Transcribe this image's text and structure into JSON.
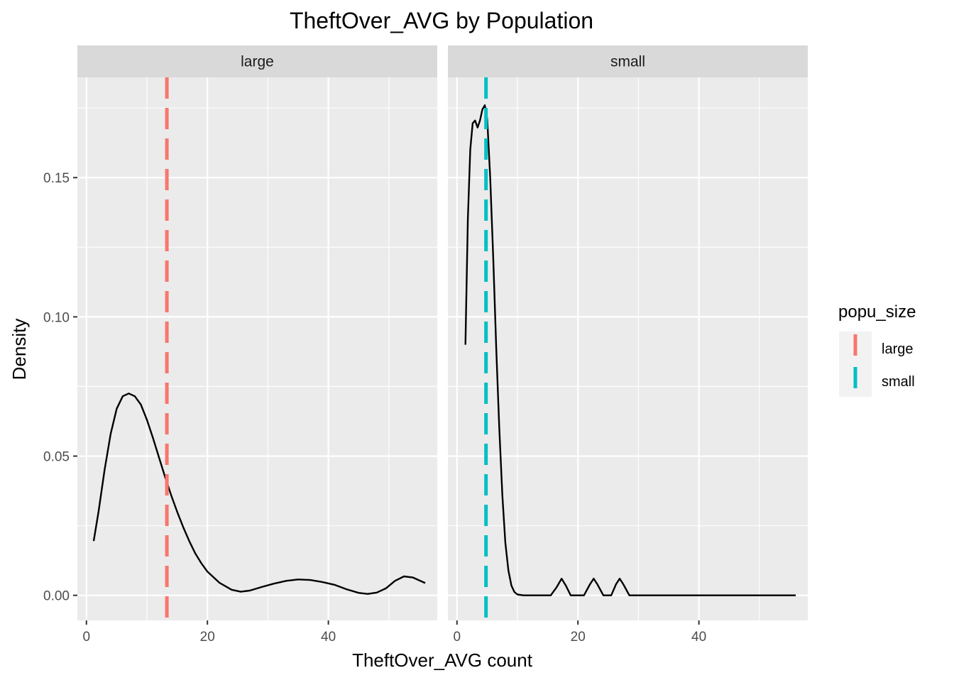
{
  "chart_data": {
    "type": "density",
    "title": "TheftOver_AVG by Population",
    "xlabel": "TheftOver_AVG count",
    "ylabel": "Density",
    "xlim": [
      -1.5,
      58
    ],
    "ylim": [
      -0.009,
      0.186
    ],
    "x_ticks": [
      0,
      20,
      40
    ],
    "y_ticks": [
      0.0,
      0.05,
      0.1,
      0.15
    ],
    "y_tick_labels": [
      "0.00",
      "0.05",
      "0.10",
      "0.15"
    ],
    "grid": true,
    "legend": {
      "title": "popu_size",
      "position": "right",
      "entries": [
        {
          "label": "large",
          "color": "#F8766D"
        },
        {
          "label": "small",
          "color": "#00BFC4"
        }
      ]
    },
    "panels": [
      {
        "strip": "large",
        "mean_line": {
          "x": 13.3,
          "color": "#F8766D",
          "dash": "dashed"
        },
        "curve": [
          [
            1.2,
            0.0195
          ],
          [
            2,
            0.03
          ],
          [
            3,
            0.045
          ],
          [
            4,
            0.058
          ],
          [
            5,
            0.067
          ],
          [
            6,
            0.0715
          ],
          [
            7,
            0.0725
          ],
          [
            8,
            0.0715
          ],
          [
            9,
            0.0685
          ],
          [
            10,
            0.063
          ],
          [
            11,
            0.0565
          ],
          [
            12,
            0.0495
          ],
          [
            13,
            0.0425
          ],
          [
            14,
            0.036
          ],
          [
            15,
            0.03
          ],
          [
            16,
            0.0245
          ],
          [
            17,
            0.0195
          ],
          [
            18,
            0.015
          ],
          [
            19,
            0.0115
          ],
          [
            20,
            0.0085
          ],
          [
            22,
            0.0045
          ],
          [
            24,
            0.002
          ],
          [
            25.5,
            0.0013
          ],
          [
            27,
            0.0017
          ],
          [
            29,
            0.003
          ],
          [
            31,
            0.0042
          ],
          [
            33,
            0.0052
          ],
          [
            35,
            0.0057
          ],
          [
            37,
            0.0055
          ],
          [
            39,
            0.0048
          ],
          [
            41,
            0.0038
          ],
          [
            43,
            0.0022
          ],
          [
            45,
            0.0009
          ],
          [
            46.5,
            0.0005
          ],
          [
            48,
            0.001
          ],
          [
            49.5,
            0.0025
          ],
          [
            51,
            0.0052
          ],
          [
            52.5,
            0.0068
          ],
          [
            54,
            0.0064
          ],
          [
            55,
            0.0054
          ],
          [
            56,
            0.0044
          ]
        ]
      },
      {
        "strip": "small",
        "mean_line": {
          "x": 4.8,
          "color": "#00BFC4",
          "dash": "dashed"
        },
        "curve": [
          [
            1.4,
            0.09
          ],
          [
            1.8,
            0.135
          ],
          [
            2.2,
            0.16
          ],
          [
            2.6,
            0.1695
          ],
          [
            3.0,
            0.1705
          ],
          [
            3.4,
            0.168
          ],
          [
            3.8,
            0.1705
          ],
          [
            4.2,
            0.1745
          ],
          [
            4.6,
            0.176
          ],
          [
            5.0,
            0.171
          ],
          [
            5.5,
            0.15
          ],
          [
            6.0,
            0.121
          ],
          [
            6.5,
            0.088
          ],
          [
            7.0,
            0.06
          ],
          [
            7.5,
            0.036
          ],
          [
            8.0,
            0.019
          ],
          [
            8.5,
            0.009
          ],
          [
            9.0,
            0.0035
          ],
          [
            9.5,
            0.0012
          ],
          [
            10.0,
            0.0003
          ],
          [
            11.0,
            0.0
          ],
          [
            15.5,
            0.0
          ],
          [
            16.5,
            0.003
          ],
          [
            17.3,
            0.006
          ],
          [
            18.0,
            0.0035
          ],
          [
            18.8,
            0.0
          ],
          [
            21.0,
            0.0
          ],
          [
            22.0,
            0.004
          ],
          [
            22.6,
            0.006
          ],
          [
            23.2,
            0.004
          ],
          [
            24.2,
            0.0
          ],
          [
            25.5,
            0.0
          ],
          [
            26.3,
            0.004
          ],
          [
            26.9,
            0.006
          ],
          [
            27.5,
            0.004
          ],
          [
            28.5,
            0.0
          ],
          [
            56.0,
            0.0
          ]
        ]
      }
    ]
  }
}
